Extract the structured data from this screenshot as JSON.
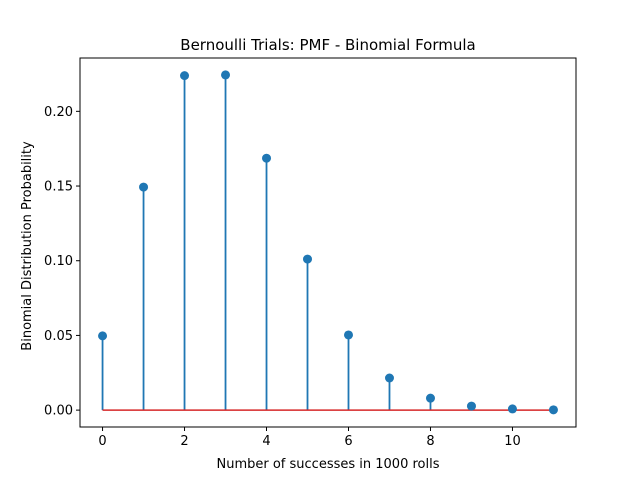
{
  "chart_data": {
    "type": "stem",
    "title": "Bernoulli Trials: PMF - Binomial Formula",
    "xlabel": "Number of successes in 1000 rolls",
    "ylabel": "Binomial Distribution Probability",
    "x": [
      0,
      1,
      2,
      3,
      4,
      5,
      6,
      7,
      8,
      9,
      10,
      11
    ],
    "y": [
      0.0497,
      0.1493,
      0.2239,
      0.2244,
      0.1686,
      0.1011,
      0.0503,
      0.0215,
      0.008,
      0.0027,
      0.0008,
      0.0002
    ],
    "xlim": [
      -0.55,
      11.55
    ],
    "ylim": [
      -0.0113,
      0.2357
    ],
    "xticks": [
      0,
      2,
      4,
      6,
      8,
      10
    ],
    "xtick_labels": [
      "0",
      "2",
      "4",
      "6",
      "8",
      "10"
    ],
    "yticks": [
      0.0,
      0.05,
      0.1,
      0.15,
      0.2
    ],
    "ytick_labels": [
      "0.00",
      "0.05",
      "0.10",
      "0.15",
      "0.20"
    ],
    "grid": false,
    "stem_color": "#1f77b4",
    "marker_color": "#1f77b4",
    "baseline_color": "#d62728"
  }
}
